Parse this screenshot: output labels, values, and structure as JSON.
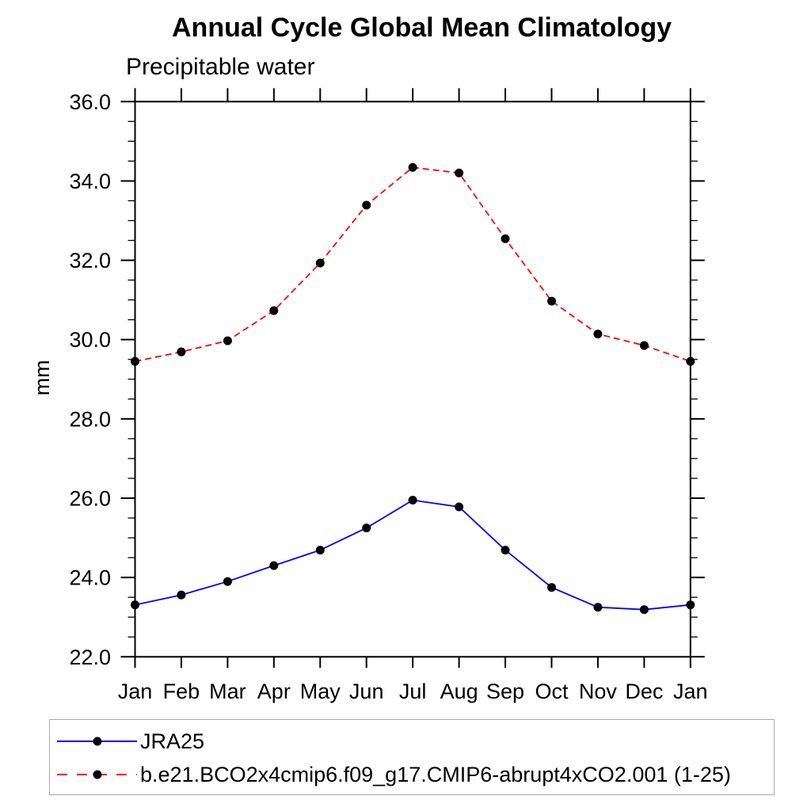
{
  "title": "Annual Cycle Global Mean Climatology",
  "subtitle": "Precipitable water",
  "chart_data": {
    "type": "line",
    "title": "Annual Cycle Global Mean Climatology",
    "subtitle": "Precipitable water",
    "xlabel": "",
    "ylabel": "mm",
    "categories": [
      "Jan",
      "Feb",
      "Mar",
      "Apr",
      "May",
      "Jun",
      "Jul",
      "Aug",
      "Sep",
      "Oct",
      "Nov",
      "Dec",
      "Jan"
    ],
    "ylim": [
      22.0,
      36.0
    ],
    "y_major_ticks": [
      22.0,
      24.0,
      26.0,
      28.0,
      30.0,
      32.0,
      34.0,
      36.0
    ],
    "y_tick_labels": [
      "22.0",
      "24.0",
      "26.0",
      "28.0",
      "30.0",
      "32.0",
      "34.0",
      "36.0"
    ],
    "y_minor_step": 0.5,
    "grid": false,
    "legend_position": "bottom-left-box",
    "marker": "filled-circle",
    "marker_color": "#000000",
    "frame_color": "#000000",
    "series": [
      {
        "name": "JRA25",
        "color": "#0000ff",
        "style": "solid",
        "values": [
          23.31,
          23.56,
          23.9,
          24.3,
          24.69,
          25.25,
          25.95,
          25.78,
          24.69,
          23.75,
          23.25,
          23.19,
          23.31
        ]
      },
      {
        "name": "b.e21.BCO2x4cmip6.f09_g17.CMIP6-abrupt4xCO2.001 (1-25)",
        "color": "#ff0000",
        "style": "dashed",
        "values": [
          29.45,
          29.69,
          29.97,
          30.73,
          31.93,
          33.39,
          34.34,
          34.2,
          32.54,
          30.97,
          30.14,
          29.85,
          29.45
        ]
      }
    ]
  }
}
